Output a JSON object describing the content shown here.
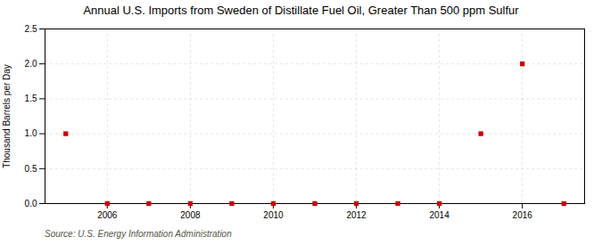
{
  "chart_data": {
    "type": "scatter",
    "title": "Annual U.S. Imports from Sweden of Distillate Fuel Oil, Greater Than 500 ppm Sulfur",
    "ylabel": "Thousand Barrels per Day",
    "source": "Source: U.S. Energy Information Administration",
    "x": [
      2005,
      2006,
      2007,
      2008,
      2009,
      2010,
      2011,
      2012,
      2013,
      2014,
      2015,
      2016,
      2017
    ],
    "values": [
      1.0,
      0.0,
      0.0,
      0.0,
      0.0,
      0.0,
      0.0,
      0.0,
      0.0,
      0.0,
      1.0,
      2.0,
      0.0
    ],
    "color": "#cc0000",
    "marker": "square",
    "xlim": [
      2004.5,
      2017.5
    ],
    "xticks": [
      2006,
      2008,
      2010,
      2012,
      2014,
      2016
    ],
    "ylim": [
      0.0,
      2.5
    ],
    "yticks": [
      {
        "value": 0.0,
        "label": "0.0"
      },
      {
        "value": 0.5,
        "label": "0.5"
      },
      {
        "value": 1.0,
        "label": "1.0"
      },
      {
        "value": 1.5,
        "label": "1.5"
      },
      {
        "value": 2.0,
        "label": "2.0"
      },
      {
        "value": 2.5,
        "label": "2.5"
      }
    ],
    "grid": true
  }
}
